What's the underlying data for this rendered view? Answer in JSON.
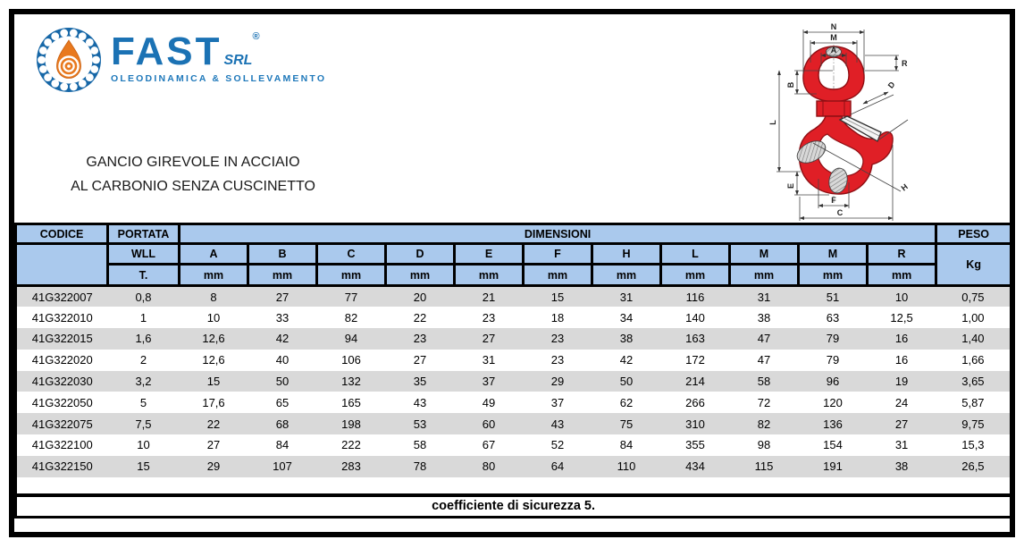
{
  "page": {
    "logo": {
      "brand": "FAST",
      "registered_mark": "®",
      "brand_suffix": "SRL",
      "tagline": "OLEODINAMICA & SOLLEVAMENTO"
    },
    "title_line1": "GANCIO GIREVOLE IN ACCIAIO",
    "title_line2": "AL CARBONIO SENZA CUSCINETTO",
    "footer_note": "coefficiente di sicurezza 5.",
    "colors": {
      "header_bg": "#aac9ed",
      "row_alt_bg": "#d9d9d9",
      "brand_blue": "#1b72b4",
      "brand_orange": "#e8791e",
      "hook_red": "#e01f26"
    }
  },
  "diagram": {
    "name": "hook-technical-drawing",
    "labels": [
      "N",
      "M",
      "A",
      "R",
      "B",
      "L",
      "E",
      "F",
      "C",
      "D",
      "H"
    ]
  },
  "table": {
    "header": {
      "codice": "CODICE",
      "portata": "PORTATA",
      "dimensioni": "DIMENSIONI",
      "peso": "PESO",
      "wll": "WLL",
      "t": "T.",
      "kg": "Kg",
      "unit": "mm",
      "dim_cols": [
        "A",
        "B",
        "C",
        "D",
        "E",
        "F",
        "H",
        "L",
        "M",
        "M",
        "R"
      ]
    },
    "rows": [
      {
        "codice": "41G322007",
        "wll": "0,8",
        "dims": [
          "8",
          "27",
          "77",
          "20",
          "21",
          "15",
          "31",
          "116",
          "31",
          "51",
          "10"
        ],
        "peso": "0,75"
      },
      {
        "codice": "41G322010",
        "wll": "1",
        "dims": [
          "10",
          "33",
          "82",
          "22",
          "23",
          "18",
          "34",
          "140",
          "38",
          "63",
          "12,5"
        ],
        "peso": "1,00"
      },
      {
        "codice": "41G322015",
        "wll": "1,6",
        "dims": [
          "12,6",
          "42",
          "94",
          "23",
          "27",
          "23",
          "38",
          "163",
          "47",
          "79",
          "16"
        ],
        "peso": "1,40"
      },
      {
        "codice": "41G322020",
        "wll": "2",
        "dims": [
          "12,6",
          "40",
          "106",
          "27",
          "31",
          "23",
          "42",
          "172",
          "47",
          "79",
          "16"
        ],
        "peso": "1,66"
      },
      {
        "codice": "41G322030",
        "wll": "3,2",
        "dims": [
          "15",
          "50",
          "132",
          "35",
          "37",
          "29",
          "50",
          "214",
          "58",
          "96",
          "19"
        ],
        "peso": "3,65"
      },
      {
        "codice": "41G322050",
        "wll": "5",
        "dims": [
          "17,6",
          "65",
          "165",
          "43",
          "49",
          "37",
          "62",
          "266",
          "72",
          "120",
          "24"
        ],
        "peso": "5,87"
      },
      {
        "codice": "41G322075",
        "wll": "7,5",
        "dims": [
          "22",
          "68",
          "198",
          "53",
          "60",
          "43",
          "75",
          "310",
          "82",
          "136",
          "27"
        ],
        "peso": "9,75"
      },
      {
        "codice": "41G322100",
        "wll": "10",
        "dims": [
          "27",
          "84",
          "222",
          "58",
          "67",
          "52",
          "84",
          "355",
          "98",
          "154",
          "31"
        ],
        "peso": "15,3"
      },
      {
        "codice": "41G322150",
        "wll": "15",
        "dims": [
          "29",
          "107",
          "283",
          "78",
          "80",
          "64",
          "110",
          "434",
          "115",
          "191",
          "38"
        ],
        "peso": "26,5"
      }
    ]
  }
}
